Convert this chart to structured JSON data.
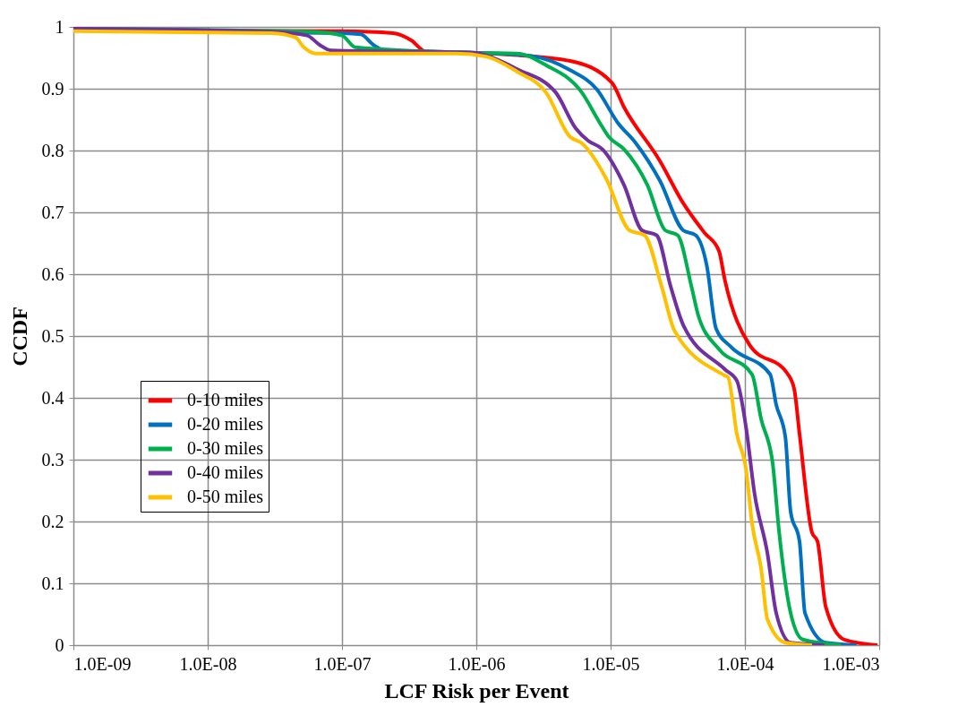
{
  "chart_data": {
    "type": "line",
    "xlabel": "LCF Risk per Event",
    "ylabel": "CCDF",
    "log": "x",
    "grid": true,
    "legend": "left",
    "line_style": "solid",
    "marker": "none",
    "xlim": [
      1e-09,
      0.001
    ],
    "ylim": [
      0,
      1
    ],
    "xticks": [
      {
        "value": 1e-09,
        "label": "1.0E-09"
      },
      {
        "value": 1e-08,
        "label": "1.0E-08"
      },
      {
        "value": 1e-07,
        "label": "1.0E-07"
      },
      {
        "value": 1e-06,
        "label": "1.0E-06"
      },
      {
        "value": 1e-05,
        "label": "1.0E-05"
      },
      {
        "value": 0.0001,
        "label": "1.0E-04"
      },
      {
        "value": 0.001,
        "label": "1.0E-03"
      }
    ],
    "yticks": [
      0,
      0.1,
      0.2,
      0.3,
      0.4,
      0.5,
      0.6,
      0.7,
      0.8,
      0.9,
      1
    ],
    "series": [
      {
        "name": "0-10 miles",
        "color": "#ff0000",
        "x": [
          1e-09,
          1e-07,
          2.4e-07,
          3.3e-07,
          4.2e-07,
          1e-06,
          1.79e-06,
          5e-06,
          1.02e-05,
          1.26e-05,
          2.33e-05,
          3.47e-05,
          5e-05,
          6.4e-05,
          7.1e-05,
          0.000108,
          0.000209,
          0.000233,
          0.000255,
          0.000316,
          0.000347,
          0.0004,
          0.00055,
          0.00097
        ],
        "values": [
          0.995,
          0.993,
          0.99,
          0.978,
          0.96,
          0.958,
          0.955,
          0.945,
          0.91,
          0.87,
          0.783,
          0.715,
          0.667,
          0.638,
          0.59,
          0.486,
          0.438,
          0.414,
          0.342,
          0.182,
          0.168,
          0.062,
          0.009,
          0
        ]
      },
      {
        "name": "0-20 miles",
        "color": "#0070c0",
        "x": [
          1e-09,
          2.8e-09,
          1e-07,
          1.38e-07,
          1.71e-07,
          2.1e-07,
          1e-06,
          2.55e-06,
          5e-06,
          7.9e-06,
          1.13e-05,
          1.54e-05,
          2.33e-05,
          3.47e-05,
          4.3e-05,
          5.2e-05,
          6.1e-05,
          7.9e-05,
          0.000154,
          0.000171,
          0.0002,
          0.000219,
          0.000255,
          0.00028,
          0.0004,
          0.00068
        ],
        "values": [
          0.998,
          0.993,
          0.99,
          0.988,
          0.971,
          0.962,
          0.958,
          0.953,
          0.93,
          0.899,
          0.845,
          0.812,
          0.751,
          0.671,
          0.663,
          0.614,
          0.512,
          0.482,
          0.438,
          0.389,
          0.337,
          0.216,
          0.168,
          0.052,
          0.004,
          0
        ]
      },
      {
        "name": "0-30 miles",
        "color": "#00b050",
        "x": [
          1e-09,
          6e-08,
          1e-07,
          1.26e-07,
          1e-06,
          2e-06,
          3.3e-06,
          6.1e-06,
          8.3e-06,
          9.7e-06,
          1.26e-05,
          1.88e-05,
          2.55e-05,
          3.16e-05,
          4e-05,
          4.5e-05,
          6.4e-05,
          0.000113,
          0.000132,
          0.000161,
          0.000179,
          0.000219,
          0.00027,
          0.00052
        ],
        "values": [
          0.997,
          0.992,
          0.986,
          0.967,
          0.958,
          0.957,
          0.938,
          0.894,
          0.845,
          0.822,
          0.802,
          0.744,
          0.671,
          0.663,
          0.58,
          0.533,
          0.479,
          0.438,
          0.366,
          0.294,
          0.187,
          0.052,
          0.009,
          0
        ]
      },
      {
        "name": "0-40 miles",
        "color": "#7030a0",
        "x": [
          1e-09,
          3e-08,
          5.5e-08,
          6.8e-08,
          8.3e-08,
          1e-06,
          1.18e-06,
          2e-06,
          3.9e-06,
          5.5e-06,
          6.8e-06,
          8.7e-06,
          1.26e-05,
          1.71e-05,
          2.2e-05,
          2.8e-05,
          3.47e-05,
          7.1e-05,
          8.7e-05,
          0.000102,
          0.000118,
          0.000147,
          0.000171,
          0.000219,
          0.00039
        ],
        "values": [
          0.997,
          0.992,
          0.986,
          0.971,
          0.962,
          0.958,
          0.954,
          0.932,
          0.894,
          0.836,
          0.816,
          0.802,
          0.744,
          0.671,
          0.663,
          0.58,
          0.518,
          0.446,
          0.428,
          0.352,
          0.245,
          0.149,
          0.052,
          0.004,
          0
        ]
      },
      {
        "name": "0-50 miles",
        "color": "#ffc000",
        "x": [
          1e-09,
          3e-08,
          4.5e-08,
          5.2e-08,
          6.4e-08,
          7.1e-07,
          1.18e-06,
          2e-06,
          3.3e-06,
          5e-06,
          6.1e-06,
          9.3e-06,
          1.38e-05,
          1.79e-05,
          2.4e-05,
          3e-05,
          7.1e-05,
          7.5e-05,
          8.7e-05,
          0.000102,
          0.000113,
          0.000132,
          0.000147,
          0.0002,
          0.000316
        ],
        "values": [
          0.993,
          0.99,
          0.983,
          0.967,
          0.957,
          0.957,
          0.952,
          0.928,
          0.894,
          0.822,
          0.812,
          0.754,
          0.671,
          0.663,
          0.58,
          0.508,
          0.436,
          0.433,
          0.342,
          0.284,
          0.197,
          0.124,
          0.042,
          0.004,
          0
        ]
      }
    ]
  }
}
